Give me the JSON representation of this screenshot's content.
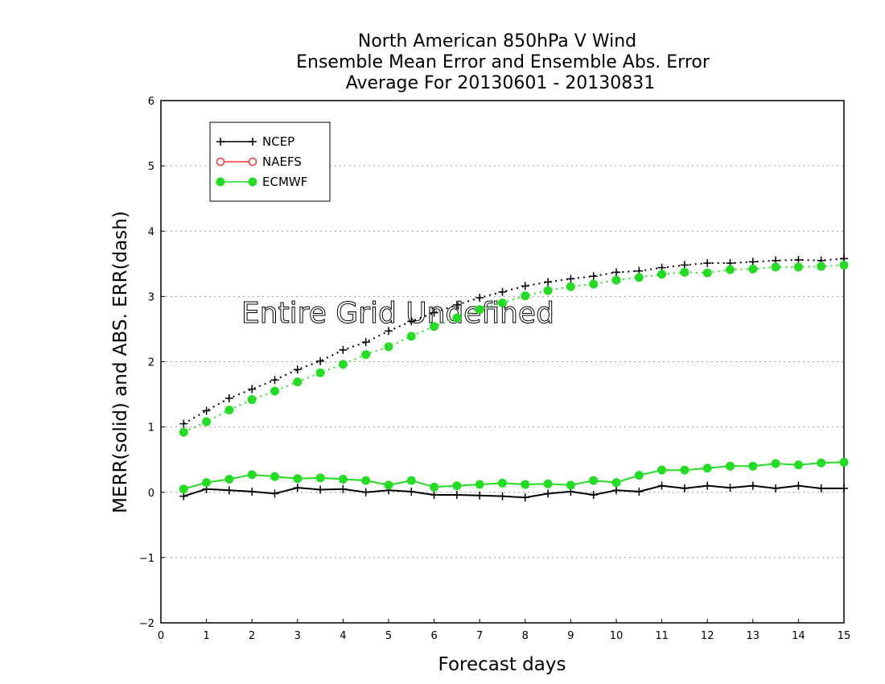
{
  "chart_data": {
    "type": "line",
    "title": [
      "North American 850hPa V Wind",
      "Ensemble Mean Error and Ensemble Abs. Error",
      "Average For 20130601 - 20130831"
    ],
    "xlabel": "Forecast days",
    "ylabel": "MERR(solid) and ABS. ERR(dash)",
    "xlim": [
      0,
      15
    ],
    "ylim": [
      -2,
      6
    ],
    "xticks": [
      0,
      1,
      2,
      3,
      4,
      5,
      6,
      7,
      8,
      9,
      10,
      11,
      12,
      13,
      14,
      15
    ],
    "yticks": [
      -2,
      -1,
      0,
      1,
      2,
      3,
      4,
      5,
      6
    ],
    "grid": "horizontal dotted",
    "legend_position": "top-left",
    "annotation": "Entire Grid Undefined",
    "x": [
      0.5,
      1,
      1.5,
      2,
      2.5,
      3,
      3.5,
      4,
      4.5,
      5,
      5.5,
      6,
      6.5,
      7,
      7.5,
      8,
      8.5,
      9,
      9.5,
      10,
      10.5,
      11,
      11.5,
      12,
      12.5,
      13,
      13.5,
      14,
      14.5,
      15
    ],
    "series": [
      {
        "name": "NCEP",
        "color": "#000000",
        "marker": "plus",
        "mean_error": [
          -0.06,
          0.05,
          0.03,
          0.01,
          -0.02,
          0.07,
          0.04,
          0.05,
          0.0,
          0.03,
          0.01,
          -0.04,
          -0.04,
          -0.05,
          -0.06,
          -0.08,
          -0.02,
          0.01,
          -0.04,
          0.03,
          0.01,
          0.1,
          0.06,
          0.1,
          0.07,
          0.1,
          0.06,
          0.1,
          0.06,
          0.06
        ],
        "abs_error": [
          1.05,
          1.25,
          1.44,
          1.58,
          1.72,
          1.88,
          2.01,
          2.18,
          2.3,
          2.47,
          2.62,
          2.75,
          2.87,
          2.98,
          3.07,
          3.16,
          3.22,
          3.27,
          3.31,
          3.37,
          3.39,
          3.44,
          3.48,
          3.51,
          3.51,
          3.53,
          3.55,
          3.56,
          3.55,
          3.58
        ]
      },
      {
        "name": "NAEFS",
        "color": "#ff3333",
        "marker": "open-circle",
        "mean_error": [],
        "abs_error": []
      },
      {
        "name": "ECMWF",
        "color": "#22dd22",
        "marker": "filled-circle",
        "mean_error": [
          0.05,
          0.15,
          0.2,
          0.27,
          0.24,
          0.21,
          0.22,
          0.2,
          0.18,
          0.11,
          0.18,
          0.08,
          0.1,
          0.12,
          0.14,
          0.12,
          0.13,
          0.11,
          0.18,
          0.15,
          0.26,
          0.34,
          0.34,
          0.37,
          0.4,
          0.4,
          0.44,
          0.42,
          0.45,
          0.46
        ],
        "abs_error": [
          0.92,
          1.08,
          1.26,
          1.42,
          1.55,
          1.69,
          1.83,
          1.96,
          2.11,
          2.23,
          2.39,
          2.54,
          2.67,
          2.8,
          2.9,
          3.01,
          3.09,
          3.15,
          3.19,
          3.25,
          3.29,
          3.34,
          3.37,
          3.36,
          3.41,
          3.42,
          3.45,
          3.45,
          3.46,
          3.48
        ]
      }
    ]
  }
}
